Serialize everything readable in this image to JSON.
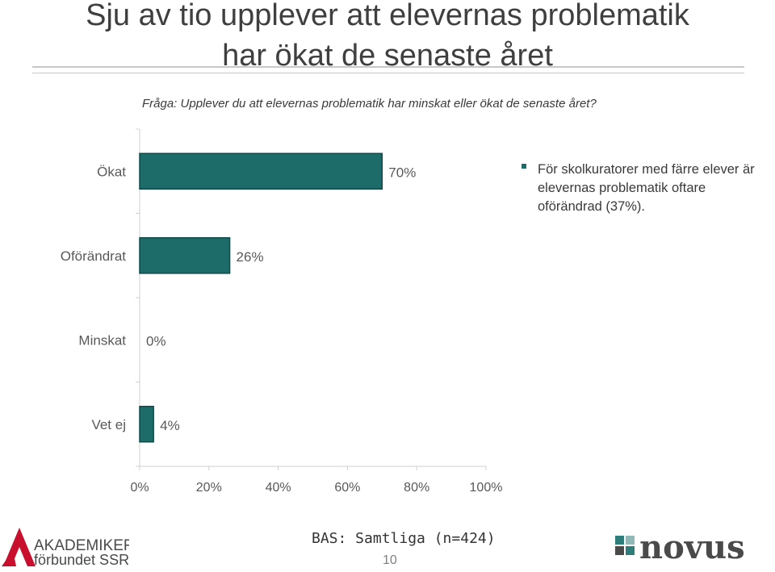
{
  "title": {
    "line1": "Sju av tio upplever att elevernas problematik",
    "line2": "har ökat de senaste året"
  },
  "question": "Fråga: Upplever du att elevernas problematik har minskat eller ökat de senaste året?",
  "chart_data": {
    "type": "bar",
    "orientation": "horizontal",
    "categories": [
      "Ökat",
      "Oförändrat",
      "Minskat",
      "Vet ej"
    ],
    "values": [
      70,
      26,
      0,
      4
    ],
    "value_labels": [
      "70%",
      "26%",
      "0%",
      "4%"
    ],
    "xlim": [
      0,
      100
    ],
    "xticks": [
      "0%",
      "20%",
      "40%",
      "60%",
      "80%",
      "100%"
    ],
    "bar_color": "#1e6c6a",
    "bar_edge_color": "#0f4a48",
    "grid": false
  },
  "note": "För skolkuratorer med färre elever är elevernas problematik oftare oförändrad (37%).",
  "footer": {
    "base": "BAS: Samtliga (n=424)",
    "page_number": "10"
  },
  "logos": {
    "left_line1": "AKADEMIKER",
    "left_line2": "förbundet SSR",
    "right_text": "novus",
    "left_color": "#c8102e",
    "right_color": "#4a4a4a",
    "accent_teal": "#2e7d7a"
  }
}
